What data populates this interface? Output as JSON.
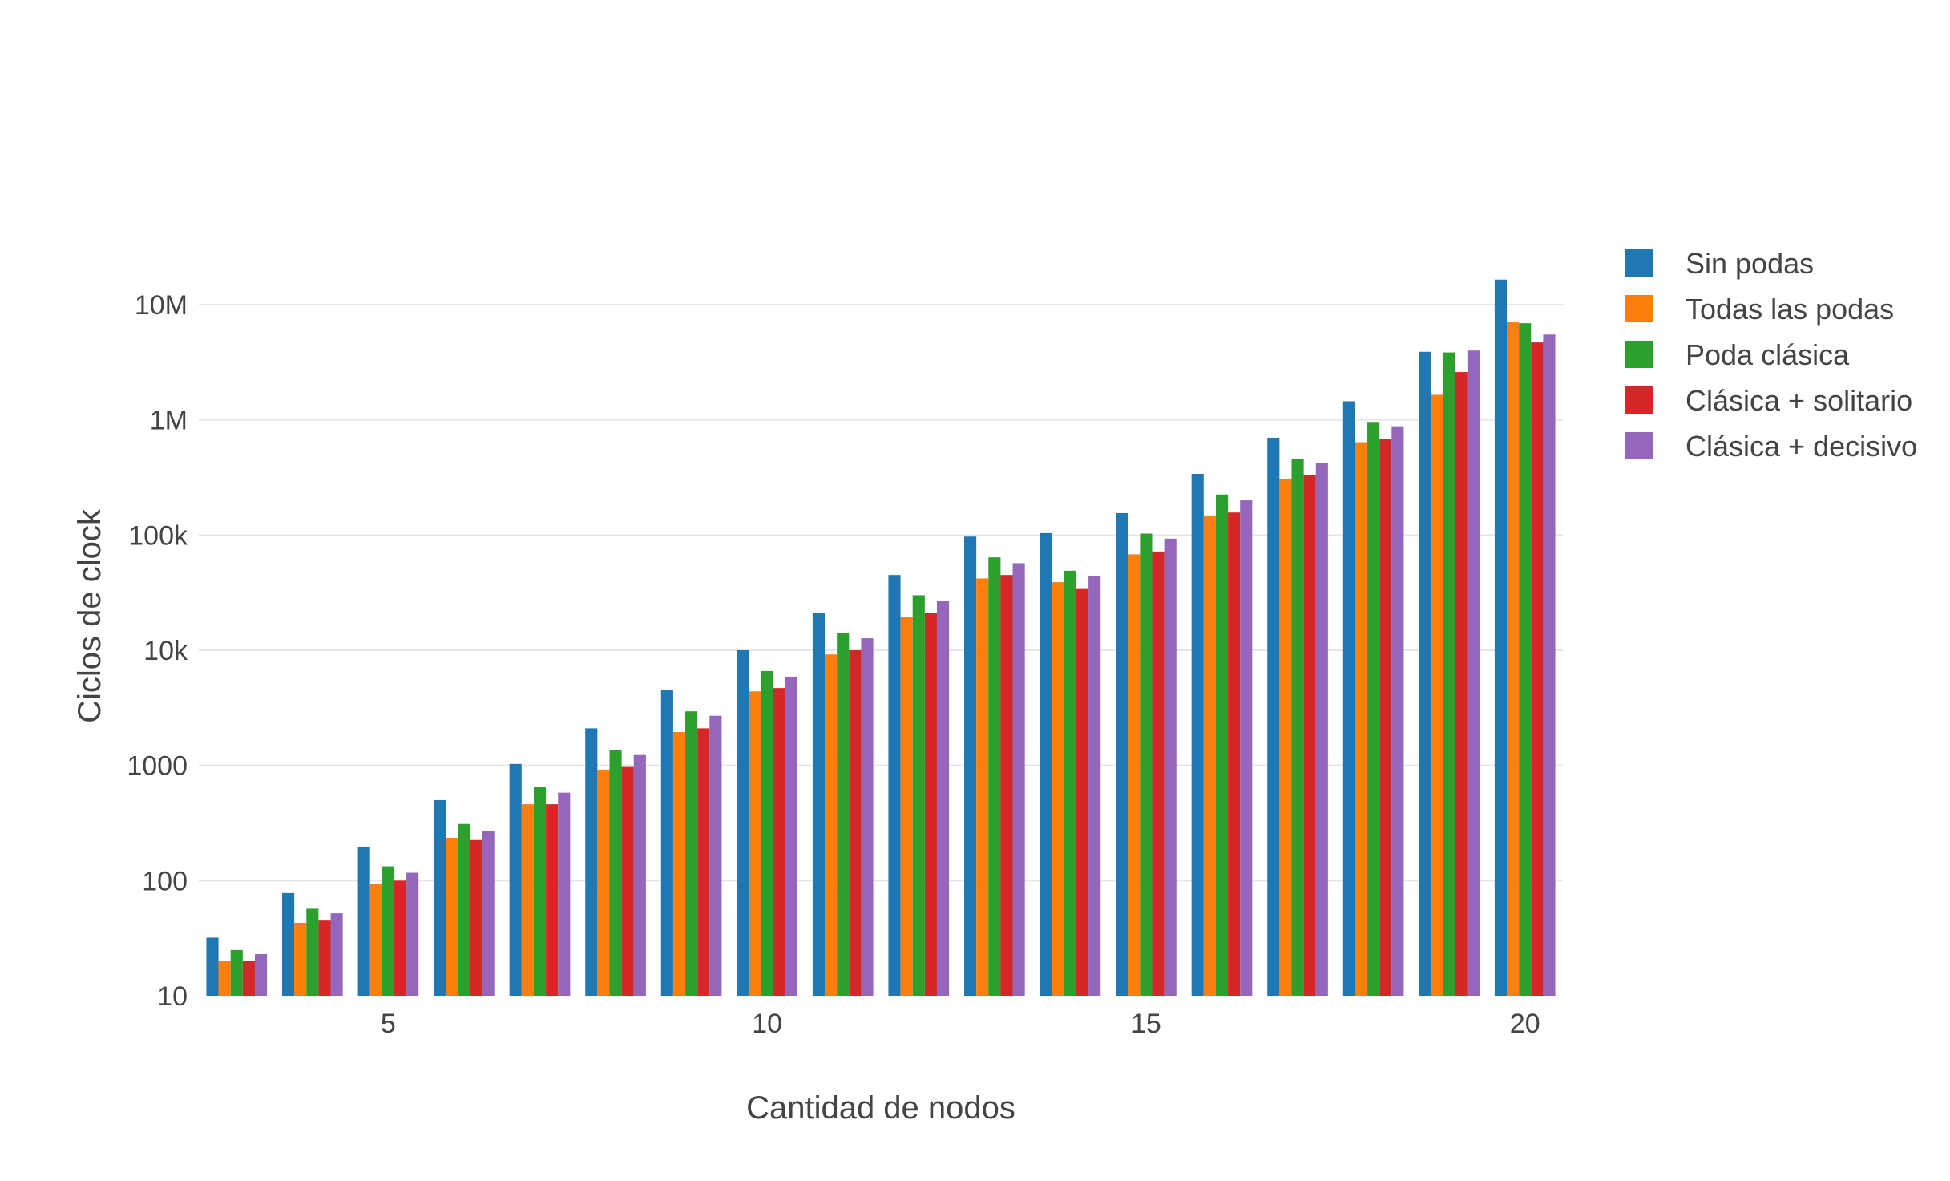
{
  "chart_data": {
    "type": "bar",
    "barmode": "grouped",
    "title": "",
    "xlabel": "Cantidad de nodos",
    "ylabel": "Ciclos de clock",
    "y_scale": "log",
    "ylim": [
      10,
      30000000
    ],
    "x": [
      3,
      4,
      5,
      6,
      7,
      8,
      9,
      10,
      11,
      12,
      13,
      14,
      15,
      16,
      17,
      18,
      19,
      20
    ],
    "x_ticks": [
      5,
      10,
      15,
      20
    ],
    "x_tick_labels": [
      "5",
      "10",
      "15",
      "20"
    ],
    "y_ticks": [
      10,
      100,
      1000,
      10000,
      100000,
      1000000,
      10000000
    ],
    "y_tick_labels": [
      "10",
      "100",
      "1000",
      "10k",
      "100k",
      "1M",
      "10M"
    ],
    "grid": true,
    "legend_position": "right",
    "series": [
      {
        "name": "Sin podas",
        "color": "#1f77b4",
        "values": [
          32,
          78,
          195,
          500,
          1030,
          2100,
          4500,
          10000,
          21000,
          45000,
          97000,
          104000,
          155000,
          340000,
          700000,
          1450000,
          3900000,
          16500000
        ]
      },
      {
        "name": "Todas las podas",
        "color": "#ff7f0e",
        "values": [
          20,
          43,
          93,
          235,
          460,
          920,
          1950,
          4400,
          9200,
          19500,
          42000,
          39000,
          68000,
          148000,
          305000,
          640000,
          1650000,
          7100000
        ]
      },
      {
        "name": "Poda clásica",
        "color": "#2ca02c",
        "values": [
          25,
          57,
          133,
          310,
          650,
          1370,
          2950,
          6600,
          14000,
          30000,
          64000,
          49000,
          103000,
          225000,
          460000,
          960000,
          3850000,
          6900000
        ]
      },
      {
        "name": "Clásica + solitario",
        "color": "#d62728",
        "values": [
          20,
          45,
          100,
          225,
          460,
          970,
          2100,
          4700,
          10000,
          21000,
          45000,
          34000,
          72000,
          157000,
          330000,
          680000,
          2600000,
          4700000
        ]
      },
      {
        "name": "Clásica + decisivo",
        "color": "#9467bd",
        "values": [
          23,
          52,
          117,
          270,
          580,
          1230,
          2700,
          5900,
          12700,
          27000,
          57000,
          44000,
          93000,
          200000,
          420000,
          880000,
          4000000,
          5500000
        ]
      }
    ]
  }
}
